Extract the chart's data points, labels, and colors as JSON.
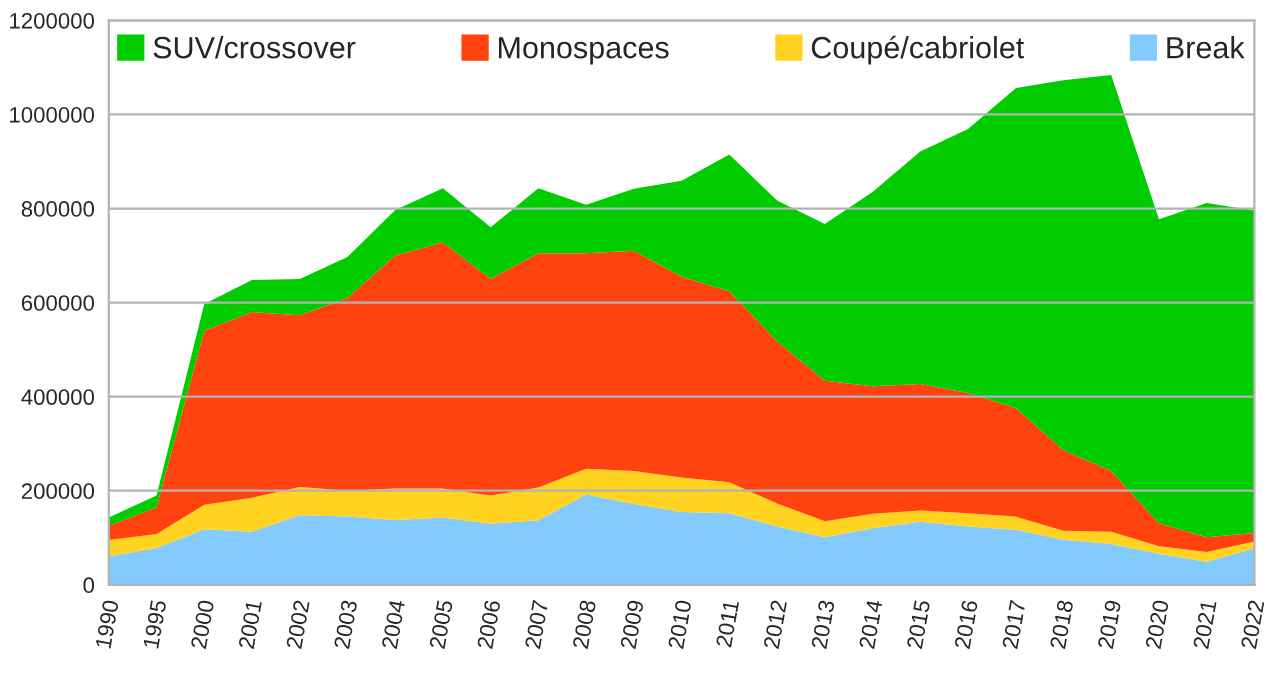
{
  "chart_data": {
    "type": "area",
    "stacked": true,
    "categories": [
      "1990",
      "1995",
      "2000",
      "2001",
      "2002",
      "2003",
      "2004",
      "2005",
      "2006",
      "2007",
      "2008",
      "2009",
      "2010",
      "2011",
      "2012",
      "2013",
      "2014",
      "2015",
      "2016",
      "2017",
      "2018",
      "2019",
      "2020",
      "2021",
      "2022"
    ],
    "series": [
      {
        "name": "Break",
        "color": "#83caff",
        "values": [
          60000,
          78000,
          118000,
          113000,
          148000,
          145000,
          138000,
          143000,
          130000,
          137000,
          192000,
          172000,
          155000,
          152000,
          124000,
          101000,
          120000,
          134000,
          124000,
          117000,
          96000,
          87000,
          66000,
          49000,
          77000
        ]
      },
      {
        "name": "Coupé/cabriolet",
        "color": "#ffd320",
        "values": [
          35000,
          30000,
          52000,
          72000,
          60000,
          55000,
          67000,
          62000,
          60000,
          70000,
          55000,
          70000,
          73000,
          66000,
          49000,
          34000,
          31000,
          24000,
          28000,
          28000,
          19000,
          26000,
          16000,
          21000,
          15000
        ]
      },
      {
        "name": "Monospaces",
        "color": "#ff420e",
        "values": [
          30000,
          57000,
          370000,
          395000,
          365000,
          410000,
          495000,
          523000,
          460000,
          498000,
          458000,
          468000,
          427000,
          406000,
          345000,
          299000,
          271000,
          269000,
          256000,
          231000,
          171000,
          129000,
          49000,
          31000,
          18000
        ]
      },
      {
        "name": "SUV/crossover",
        "color": "#00cc00",
        "values": [
          18000,
          25000,
          57000,
          68000,
          77000,
          87000,
          97000,
          115000,
          110000,
          138000,
          103000,
          132000,
          204000,
          291000,
          299000,
          333000,
          413000,
          494000,
          561000,
          680000,
          787000,
          842000,
          646000,
          711000,
          686000
        ]
      }
    ],
    "ylim": [
      0,
      1200000
    ],
    "yticks": [
      0,
      200000,
      400000,
      600000,
      800000,
      1000000,
      1200000
    ],
    "grid": "y",
    "legend": "top"
  }
}
